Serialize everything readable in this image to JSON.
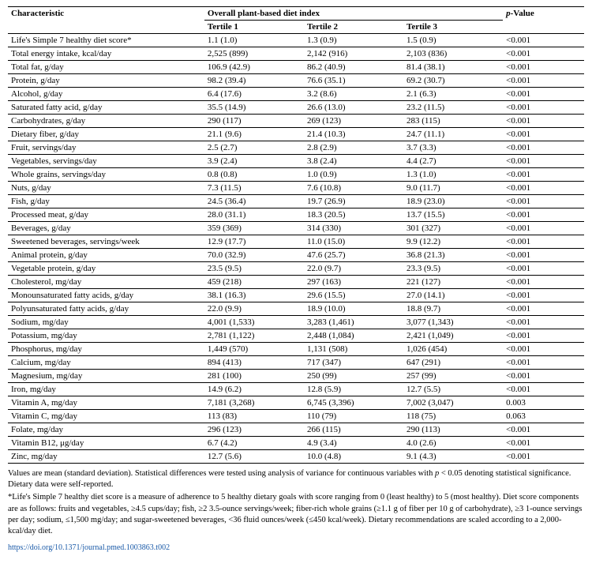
{
  "header": {
    "characteristic": "Characteristic",
    "overall": "Overall plant-based diet index",
    "pvalue_prefix": "p",
    "pvalue_suffix": "-Value",
    "t1": "Tertile 1",
    "t2": "Tertile 2",
    "t3": "Tertile 3"
  },
  "rows": [
    {
      "c": "Life's Simple 7 healthy diet score*",
      "t1": "1.1 (1.0)",
      "t2": "1.3 (0.9)",
      "t3": "1.5 (0.9)",
      "p": "<0.001"
    },
    {
      "c": "Total energy intake, kcal/day",
      "t1": "2,525 (899)",
      "t2": "2,142 (916)",
      "t3": "2,103 (836)",
      "p": "<0.001"
    },
    {
      "c": "Total fat, g/day",
      "t1": "106.9 (42.9)",
      "t2": "86.2 (40.9)",
      "t3": "81.4 (38.1)",
      "p": "<0.001"
    },
    {
      "c": "Protein, g/day",
      "t1": "98.2 (39.4)",
      "t2": "76.6 (35.1)",
      "t3": "69.2 (30.7)",
      "p": "<0.001"
    },
    {
      "c": "Alcohol, g/day",
      "t1": "6.4 (17.6)",
      "t2": "3.2 (8.6)",
      "t3": "2.1 (6.3)",
      "p": "<0.001"
    },
    {
      "c": "Saturated fatty acid, g/day",
      "t1": "35.5 (14.9)",
      "t2": "26.6 (13.0)",
      "t3": "23.2 (11.5)",
      "p": "<0.001"
    },
    {
      "c": "Carbohydrates, g/day",
      "t1": "290 (117)",
      "t2": "269 (123)",
      "t3": "283 (115)",
      "p": "<0.001"
    },
    {
      "c": "Dietary fiber, g/day",
      "t1": "21.1 (9.6)",
      "t2": "21.4 (10.3)",
      "t3": "24.7 (11.1)",
      "p": "<0.001"
    },
    {
      "c": "Fruit, servings/day",
      "t1": "2.5 (2.7)",
      "t2": "2.8 (2.9)",
      "t3": "3.7 (3.3)",
      "p": "<0.001"
    },
    {
      "c": "Vegetables, servings/day",
      "t1": "3.9 (2.4)",
      "t2": "3.8 (2.4)",
      "t3": "4.4 (2.7)",
      "p": "<0.001"
    },
    {
      "c": "Whole grains, servings/day",
      "t1": "0.8 (0.8)",
      "t2": "1.0 (0.9)",
      "t3": "1.3 (1.0)",
      "p": "<0.001"
    },
    {
      "c": "Nuts, g/day",
      "t1": "7.3 (11.5)",
      "t2": "7.6 (10.8)",
      "t3": "9.0 (11.7)",
      "p": "<0.001"
    },
    {
      "c": "Fish, g/day",
      "t1": "24.5 (36.4)",
      "t2": "19.7 (26.9)",
      "t3": "18.9 (23.0)",
      "p": "<0.001"
    },
    {
      "c": "Processed meat, g/day",
      "t1": "28.0 (31.1)",
      "t2": "18.3 (20.5)",
      "t3": "13.7 (15.5)",
      "p": "<0.001"
    },
    {
      "c": "Beverages, g/day",
      "t1": "359 (369)",
      "t2": "314 (330)",
      "t3": "301 (327)",
      "p": "<0.001"
    },
    {
      "c": "Sweetened beverages, servings/week",
      "t1": "12.9 (17.7)",
      "t2": "11.0 (15.0)",
      "t3": "9.9 (12.2)",
      "p": "<0.001"
    },
    {
      "c": "Animal protein, g/day",
      "t1": "70.0 (32.9)",
      "t2": "47.6 (25.7)",
      "t3": "36.8 (21.3)",
      "p": "<0.001"
    },
    {
      "c": "Vegetable protein, g/day",
      "t1": "23.5 (9.5)",
      "t2": "22.0 (9.7)",
      "t3": "23.3 (9.5)",
      "p": "<0.001"
    },
    {
      "c": "Cholesterol, mg/day",
      "t1": "459 (218)",
      "t2": "297 (163)",
      "t3": "221 (127)",
      "p": "<0.001"
    },
    {
      "c": "Monounsaturated fatty acids, g/day",
      "t1": "38.1 (16.3)",
      "t2": "29.6 (15.5)",
      "t3": "27.0 (14.1)",
      "p": "<0.001"
    },
    {
      "c": "Polyunsaturated fatty acids, g/day",
      "t1": "22.0 (9.9)",
      "t2": "18.9 (10.0)",
      "t3": "18.8 (9.7)",
      "p": "<0.001"
    },
    {
      "c": "Sodium, mg/day",
      "t1": "4,001 (1,533)",
      "t2": "3,283 (1,461)",
      "t3": "3,077 (1,343)",
      "p": "<0.001"
    },
    {
      "c": "Potassium, mg/day",
      "t1": "2,781 (1,122)",
      "t2": "2,448 (1,084)",
      "t3": "2,421 (1,049)",
      "p": "<0.001"
    },
    {
      "c": "Phosphorus, mg/day",
      "t1": "1,449 (570)",
      "t2": "1,131 (508)",
      "t3": "1,026 (454)",
      "p": "<0.001"
    },
    {
      "c": "Calcium, mg/day",
      "t1": "894 (413)",
      "t2": "717 (347)",
      "t3": "647 (291)",
      "p": "<0.001"
    },
    {
      "c": "Magnesium, mg/day",
      "t1": "281 (100)",
      "t2": "250 (99)",
      "t3": "257 (99)",
      "p": "<0.001"
    },
    {
      "c": "Iron, mg/day",
      "t1": "14.9 (6.2)",
      "t2": "12.8 (5.9)",
      "t3": "12.7 (5.5)",
      "p": "<0.001"
    },
    {
      "c": "Vitamin A, mg/day",
      "t1": "7,181 (3,268)",
      "t2": "6,745 (3,396)",
      "t3": "7,002 (3,047)",
      "p": "0.003"
    },
    {
      "c": "Vitamin C, mg/day",
      "t1": "113 (83)",
      "t2": "110 (79)",
      "t3": "118 (75)",
      "p": "0.063"
    },
    {
      "c": "Folate, mg/day",
      "t1": "296 (123)",
      "t2": "266 (115)",
      "t3": "290 (113)",
      "p": "<0.001"
    },
    {
      "c": "Vitamin B12, μg/day",
      "t1": "6.7 (4.2)",
      "t2": "4.9 (3.4)",
      "t3": "4.0 (2.6)",
      "p": "<0.001"
    },
    {
      "c": "Zinc, mg/day",
      "t1": "12.7 (5.6)",
      "t2": "10.0 (4.8)",
      "t3": "9.1 (4.3)",
      "p": "<0.001"
    }
  ],
  "footnotes": {
    "f1_a": "Values are mean (standard deviation). Statistical differences were tested using analysis of variance for continuous variables with ",
    "f1_b": "p",
    "f1_c": " < 0.05 denoting statistical significance. Dietary data were self-reported.",
    "f2": "*Life's Simple 7 healthy diet score is a measure of adherence to 5 healthy dietary goals with score ranging from 0 (least healthy) to 5 (most healthy). Diet score components are as follows: fruits and vegetables, ≥4.5 cups/day; fish, ≥2 3.5-ounce servings/week; fiber-rich whole grains (≥1.1 g of fiber per 10 g of carbohydrate), ≥3 1-ounce servings per day; sodium, ≤1,500 mg/day; and sugar-sweetened beverages, <36 fluid ounces/week (≤450 kcal/week). Dietary recommendations are scaled according to a 2,000-kcal/day diet."
  },
  "doi": "https://doi.org/10.1371/journal.pmed.1003863.t002"
}
